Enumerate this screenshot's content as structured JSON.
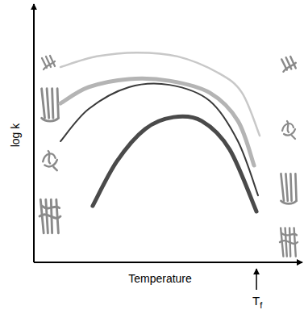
{
  "chart_data": {
    "type": "line",
    "x_label": "Temperature",
    "y_label": "log k",
    "xlim": [
      0,
      100
    ],
    "ylim": [
      0,
      100
    ],
    "tick_labels": false,
    "grid": false,
    "series": [
      {
        "color": "#c8c8c8",
        "x": [
          9.9,
          23.4,
          38.4,
          53.5,
          68.5,
          77.5,
          84.1
        ],
        "values": [
          76.8,
          81.0,
          82.5,
          81.0,
          74.6,
          66.7,
          49.8
        ]
      },
      {
        "color": "#b4b4b4",
        "x": [
          9.9,
          20.4,
          35.4,
          50.5,
          65.5,
          76.0,
          82.0
        ],
        "values": [
          62.5,
          68.9,
          72.1,
          71.4,
          66.7,
          55.6,
          38.1
        ]
      },
      {
        "color": "#3a3a3a",
        "x": [
          9.9,
          20.4,
          35.4,
          50.5,
          65.5,
          76.0,
          83.5
        ],
        "values": [
          47.6,
          60.3,
          68.9,
          69.8,
          63.5,
          47.6,
          26.3
        ]
      },
      {
        "color": "#4a4a4a",
        "x": [
          21.9,
          30.9,
          41.4,
          52.0,
          62.5,
          72.9,
          82.9
        ],
        "values": [
          22.2,
          39.7,
          52.4,
          57.1,
          55.6,
          44.4,
          20.0
        ]
      }
    ],
    "annotations": [
      {
        "text": "T",
        "subscript": "f",
        "x": 82.9
      }
    ]
  }
}
